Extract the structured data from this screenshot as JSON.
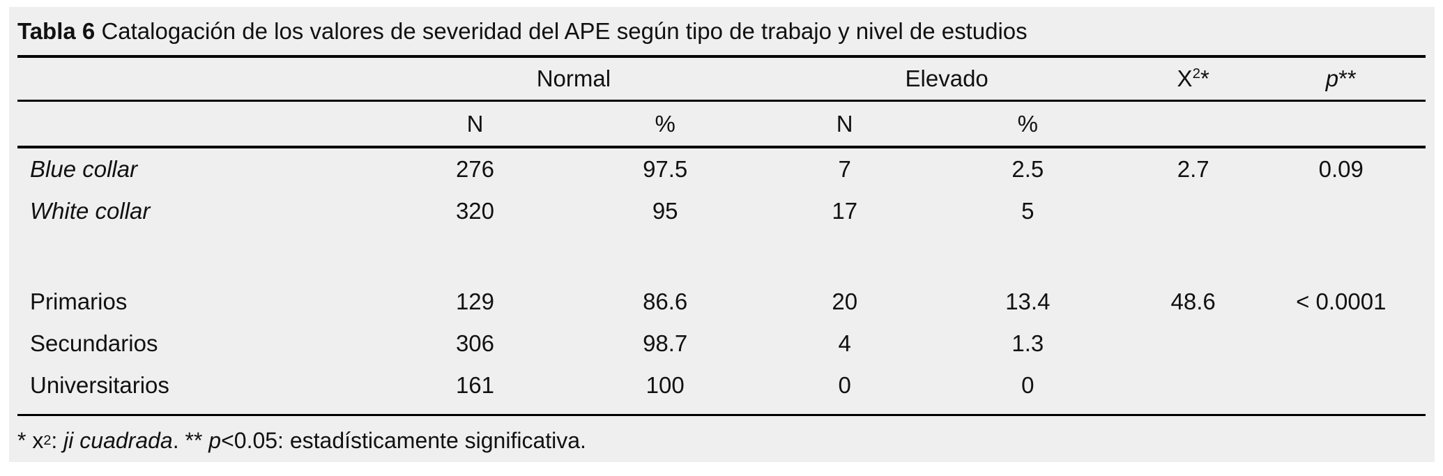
{
  "title": {
    "label": "Tabla 6",
    "separator": " ",
    "text": "Catalogación de los valores de severidad del APE según tipo de trabajo y nivel de estudios"
  },
  "table": {
    "column_groups": {
      "normal": "Normal",
      "elevado": "Elevado"
    },
    "chi_header": {
      "base": "X",
      "sup": "2",
      "star": "*"
    },
    "p_header": {
      "base": "p",
      "stars": "**"
    },
    "subheaders": {
      "normal_n": "N",
      "normal_pct": "%",
      "elevado_n": "N",
      "elevado_pct": "%"
    },
    "rows": [
      {
        "label": "Blue collar",
        "normal_n": "276",
        "normal_pct": "97.5",
        "elevado_n": "7",
        "elevado_pct": "2.5",
        "chi2": "2.7",
        "p": "0.09"
      },
      {
        "label": "White collar",
        "normal_n": "320",
        "normal_pct": "95",
        "elevado_n": "17",
        "elevado_pct": "5",
        "chi2": "",
        "p": ""
      },
      {
        "label": "Primarios",
        "normal_n": "129",
        "normal_pct": "86.6",
        "elevado_n": "20",
        "elevado_pct": "13.4",
        "chi2": "48.6",
        "p": "< 0.0001"
      },
      {
        "label": "Secundarios",
        "normal_n": "306",
        "normal_pct": "98.7",
        "elevado_n": "4",
        "elevado_pct": "1.3",
        "chi2": "",
        "p": ""
      },
      {
        "label": "Universitarios",
        "normal_n": "161",
        "normal_pct": "100",
        "elevado_n": "0",
        "elevado_pct": "0",
        "chi2": "",
        "p": ""
      }
    ]
  },
  "footnote": {
    "part1": "* x",
    "sup": "2",
    "part2": ": ",
    "italic1": "ji cuadrada",
    "part3": ". ** ",
    "italic2": "p",
    "part4": "<0.05: estadísticamente significativa."
  },
  "colors": {
    "panel_bg": "#efefef",
    "text": "#111111",
    "rule": "#000000"
  }
}
